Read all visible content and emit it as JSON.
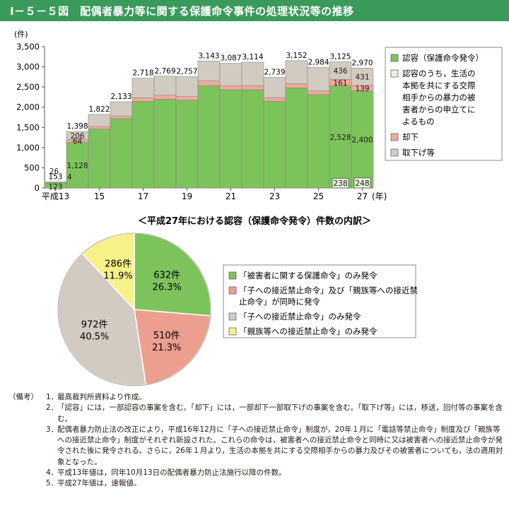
{
  "figure": {
    "title": "Ⅰ－５－５図　配偶者暴力等に関する保護命令事件の処理状況等の推移"
  },
  "chart_data": [
    {
      "type": "bar",
      "stacked": true,
      "ylabel": "(件)",
      "ylim": [
        0,
        3500
      ],
      "yticks": [
        "3,500",
        "3,000",
        "2,500",
        "2,000",
        "1,500",
        "1,000",
        "500",
        "0"
      ],
      "ytick_values": [
        3500,
        3000,
        2500,
        2000,
        1500,
        1000,
        500,
        0
      ],
      "categories": [
        "平成13",
        "14",
        "15",
        "16",
        "17",
        "18",
        "19",
        "20",
        "21",
        "22",
        "23",
        "24",
        "25",
        "26",
        "27"
      ],
      "x_tick_labels": [
        "平成13",
        "15",
        "17",
        "19",
        "21",
        "23",
        "25",
        "27"
      ],
      "x_tick_index": [
        0,
        2,
        4,
        6,
        8,
        10,
        12,
        14
      ],
      "x_unit": "(年)",
      "series": [
        {
          "name": "認容（保護命令発令）",
          "color": "#7cc35b",
          "values": [
            123,
            1128,
            1460,
            1716,
            2144,
            2197,
            2174,
            2535,
            2434,
            2434,
            2144,
            2482,
            2312,
            2528,
            2400
          ]
        },
        {
          "name": "却下",
          "color": "#f2a99b",
          "values": [
            4,
            64,
            60,
            64,
            90,
            100,
            90,
            115,
            100,
            95,
            85,
            100,
            93,
            161,
            139
          ]
        },
        {
          "name": "取下げ等",
          "color": "#d2cbc1",
          "values": [
            26,
            206,
            302,
            353,
            484,
            472,
            493,
            493,
            553,
            585,
            510,
            570,
            579,
            436,
            431
          ]
        }
      ],
      "subset_series": {
        "name": "認容のうち，生活の本拠を共にする交際相手からの暴力の被害者からの申立てによるもの",
        "color": "#e4f3d9",
        "values": [
          null,
          null,
          null,
          null,
          null,
          null,
          null,
          null,
          null,
          null,
          null,
          null,
          null,
          238,
          248
        ]
      },
      "totals": [
        153,
        1398,
        1822,
        2133,
        2718,
        2769,
        2757,
        3143,
        3087,
        3114,
        2739,
        3152,
        2984,
        3125,
        2970
      ],
      "total_labels": [
        "153",
        "1,398",
        "1,822",
        "2,133",
        "2,718",
        "2,769",
        "2,757",
        "3,143",
        "3,087",
        "3,114",
        "2,739",
        "3,152",
        "2,984",
        "3,125",
        "2,970"
      ],
      "data_labels": [
        {
          "i": 0,
          "series": "認容（保護命令発令）",
          "text": "123"
        },
        {
          "i": 0,
          "series": "却下",
          "text": "4"
        },
        {
          "i": 0,
          "series": "取下げ等",
          "text": "26"
        },
        {
          "i": 1,
          "series": "認容（保護命令発令）",
          "text": "1,128"
        },
        {
          "i": 1,
          "series": "却下",
          "text": "64"
        },
        {
          "i": 1,
          "series": "取下げ等",
          "text": "206"
        },
        {
          "i": 13,
          "series": "認容（保護命令発令）",
          "text": "2,528"
        },
        {
          "i": 13,
          "series": "却下",
          "text": "161"
        },
        {
          "i": 13,
          "series": "取下げ等",
          "text": "436"
        },
        {
          "i": 13,
          "series": "subset",
          "text": "238"
        },
        {
          "i": 14,
          "series": "認容（保護命令発令）",
          "text": "2,400"
        },
        {
          "i": 14,
          "series": "却下",
          "text": "139"
        },
        {
          "i": 14,
          "series": "取下げ等",
          "text": "431"
        },
        {
          "i": 14,
          "series": "subset",
          "text": "248"
        }
      ],
      "legend": [
        {
          "text": "認容（保護命令発令）",
          "color": "#7cc35b"
        },
        {
          "text": "認容のうち，生活の本拠を共にする交際相手からの暴力の被害者からの申立てによるもの",
          "color": "#e4f3d9",
          "lines": [
            "認容のうち，生活の",
            "本拠を共にする交際",
            "相手からの暴力の被",
            "害者からの申立てに",
            "よるもの"
          ]
        },
        {
          "text": "却下",
          "color": "#f2a99b"
        },
        {
          "text": "取下げ等",
          "color": "#d2cbc1"
        }
      ]
    },
    {
      "type": "pie",
      "title": "＜平成27年における認容（保護命令発令）件数の内訳＞",
      "slices": [
        {
          "label": "「被害者に関する保護命令」のみ発令",
          "count": 632,
          "count_label": "632件",
          "percent_label": "26.3%",
          "color": "#7cc35b"
        },
        {
          "label": "「子への接近禁止命令」及び「親族等への接近禁止命令」が同時に発令",
          "count": 510,
          "count_label": "510件",
          "percent_label": "21.3%",
          "color": "#ec9f8f",
          "lines": [
            "「子への接近禁止命令」及び「親族等への接近禁",
            "止命令」が同時に発令"
          ]
        },
        {
          "label": "「子への接近禁止命令」のみ発令",
          "count": 972,
          "count_label": "972件",
          "percent_label": "40.5%",
          "color": "#d2cbc1"
        },
        {
          "label": "「親族等への接近禁止命令」のみ発令",
          "count": 286,
          "count_label": "286件",
          "percent_label": "11.9%",
          "color": "#f7f18a"
        }
      ]
    }
  ],
  "notes": {
    "label": "（備考）",
    "items": [
      {
        "num": "1．",
        "text": "最高裁判所資料より作成。"
      },
      {
        "num": "2．",
        "text": "「認容」には，一部認容の事案を含む。「却下」には，一部却下一部取下げの事案を含む。「取下げ等」には，移送，回付等の事案を含む。"
      },
      {
        "num": "3．",
        "text": "配偶者暴力防止法の改正により，平成16年12月に「子への接近禁止命令」制度が，20年１月に「電話等禁止命令」制度及び「親族等への接近禁止命令」制度がそれぞれ新設された。これらの命令は，被害者への接近禁止命令と同時に又は被害者への接近禁止命令が発令された後に発令される。さらに，26年１月より，生活の本拠を共にする交際相手からの暴力及びその被害者についても，法の適用対象となった。"
      },
      {
        "num": "4．",
        "text": "平成13年値は，同年10月13日の配偶者暴力防止法施行以降の件数。"
      },
      {
        "num": "5．",
        "text": "平成27年値は，速報値。"
      }
    ]
  }
}
